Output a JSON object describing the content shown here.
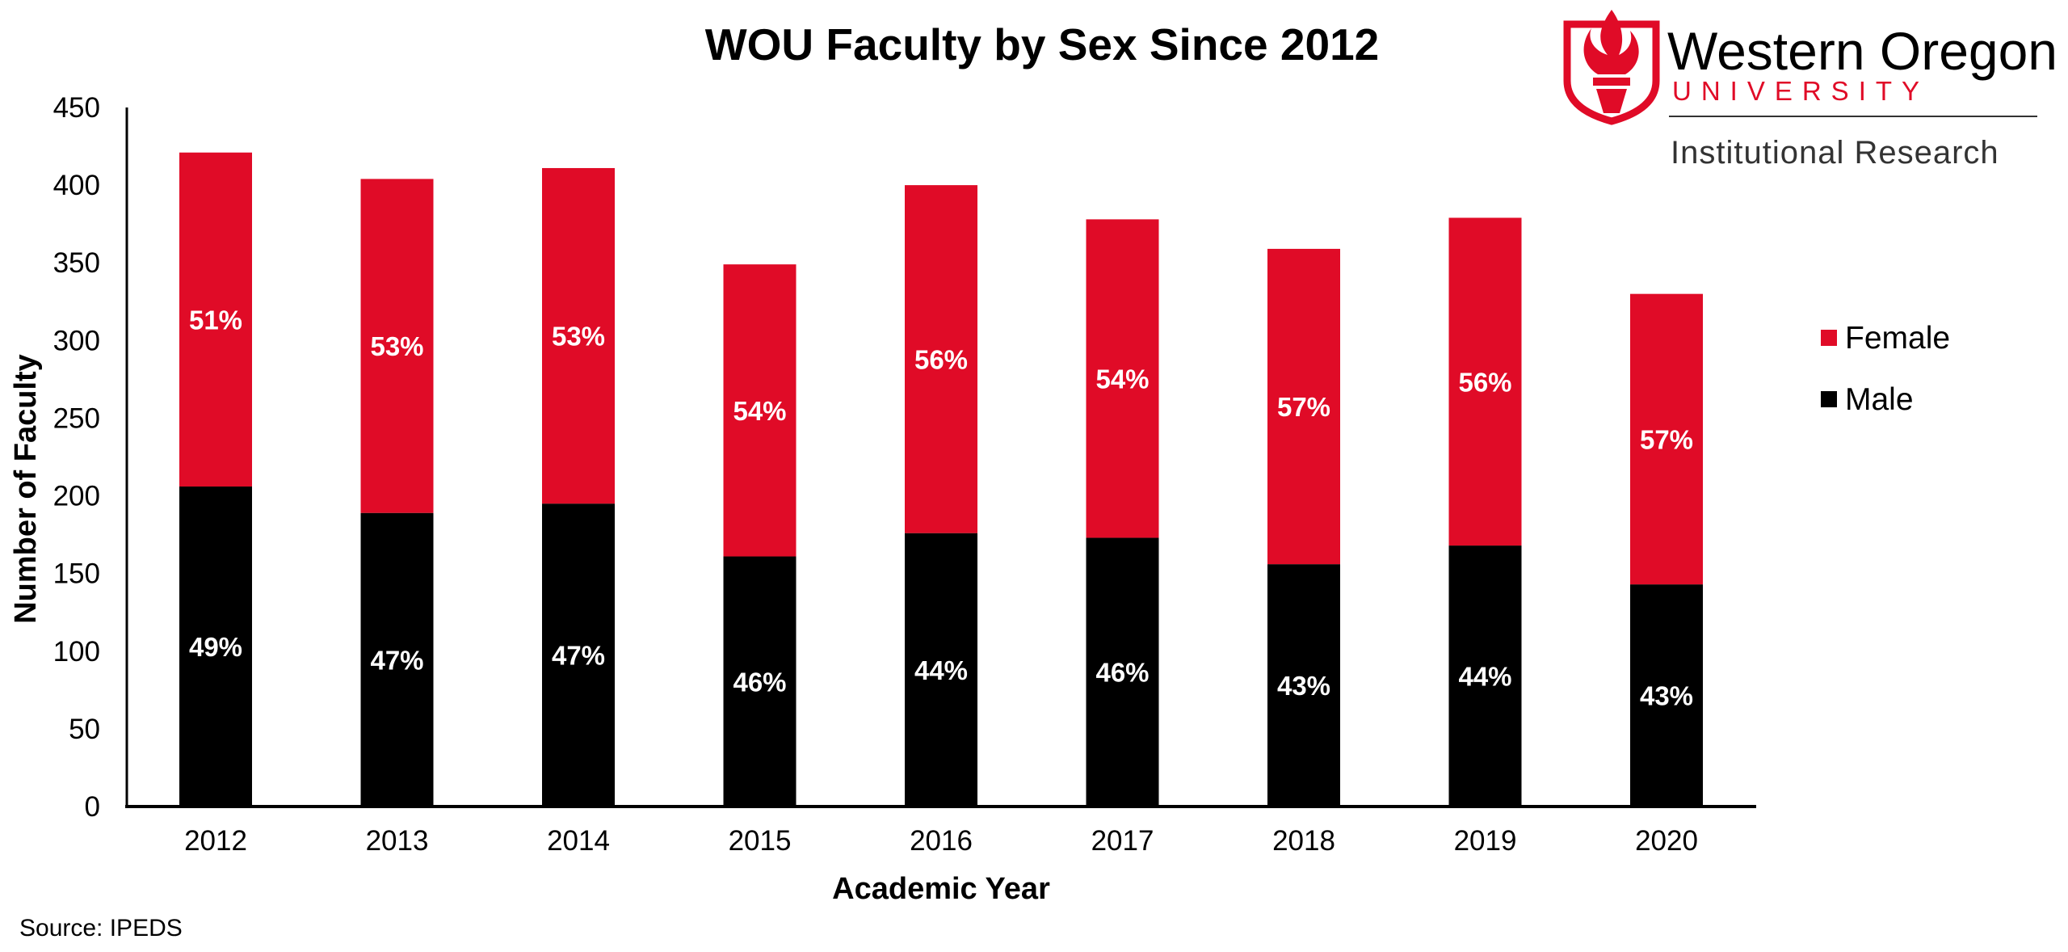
{
  "chart_data": {
    "type": "bar",
    "stacked": true,
    "title": "WOU Faculty by Sex Since 2012",
    "xlabel": "Academic Year",
    "ylabel": "Number of Faculty",
    "ylim": [
      0,
      450
    ],
    "yticks": [
      0,
      50,
      100,
      150,
      200,
      250,
      300,
      350,
      400,
      450
    ],
    "grid": false,
    "legend_position": "right",
    "categories": [
      "2012",
      "2013",
      "2014",
      "2015",
      "2016",
      "2017",
      "2018",
      "2019",
      "2020"
    ],
    "series": [
      {
        "name": "Male",
        "color": "#000000",
        "values": [
          206,
          189,
          195,
          161,
          176,
          173,
          156,
          168,
          143
        ],
        "labels": [
          "49%",
          "47%",
          "47%",
          "46%",
          "44%",
          "46%",
          "43%",
          "44%",
          "43%"
        ]
      },
      {
        "name": "Female",
        "color": "#E00B27",
        "values": [
          215,
          215,
          216,
          188,
          224,
          205,
          203,
          211,
          187
        ],
        "labels": [
          "51%",
          "53%",
          "53%",
          "54%",
          "56%",
          "54%",
          "57%",
          "56%",
          "57%"
        ]
      }
    ],
    "legend_order": [
      "Female",
      "Male"
    ],
    "source_note": "Source: IPEDS"
  },
  "logo": {
    "name": "Western Oregon",
    "subtitle": "UNIVERSITY",
    "department": "Institutional Research",
    "icon": "torch-shield-icon",
    "accent_color": "#E00B27"
  }
}
